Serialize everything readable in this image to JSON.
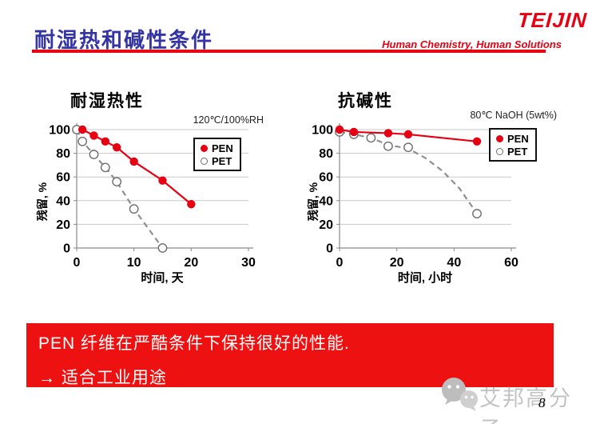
{
  "header": {
    "title": "耐湿热和碱性条件",
    "logo": "TEIJIN",
    "tagline": "Human Chemistry, Human Solutions",
    "brand_red": "#e60012",
    "title_blue": "#3534a5"
  },
  "chart_data": [
    {
      "type": "line",
      "title": "耐湿热性",
      "condition": "120℃/100%RH",
      "xlabel": "时间, 天",
      "ylabel": "残留, %",
      "xlim": [
        0,
        30
      ],
      "ylim": [
        0,
        100
      ],
      "xticks": [
        0,
        10,
        20,
        30
      ],
      "yticks": [
        0,
        20,
        40,
        60,
        80,
        100
      ],
      "grid": "horizontal",
      "legend_position": "upper-right-inside",
      "colors": {
        "grid": "#c9c9c9",
        "axis": "#8a8a8a"
      },
      "series": [
        {
          "name": "PEN",
          "color": "#e60012",
          "line_style": "solid",
          "marker": "filled-circle",
          "points": [
            [
              1,
              100
            ],
            [
              3,
              95
            ],
            [
              5,
              90
            ],
            [
              7,
              85
            ],
            [
              10,
              73
            ],
            [
              15,
              57
            ],
            [
              20,
              37
            ]
          ]
        },
        {
          "name": "PET",
          "color": "#8f8f8f",
          "line_style": "dashed",
          "marker": "open-circle",
          "points": [
            [
              0,
              100
            ],
            [
              1,
              90
            ],
            [
              3,
              79
            ],
            [
              5,
              68
            ],
            [
              7,
              56
            ],
            [
              10,
              33
            ],
            [
              15,
              0
            ]
          ]
        }
      ]
    },
    {
      "type": "line",
      "title": "抗碱性",
      "condition": "80℃ NaOH (5wt%)",
      "xlabel": "时间, 小时",
      "ylabel": "残留, %",
      "xlim": [
        0,
        60
      ],
      "ylim": [
        0,
        100
      ],
      "xticks": [
        0,
        20,
        40,
        60
      ],
      "yticks": [
        0,
        20,
        40,
        60,
        80,
        100
      ],
      "grid": "horizontal",
      "legend_position": "upper-right-inside",
      "colors": {
        "grid": "#c9c9c9",
        "axis": "#8a8a8a"
      },
      "series": [
        {
          "name": "PEN",
          "color": "#e60012",
          "line_style": "solid",
          "marker": "filled-circle",
          "points": [
            [
              0,
              100
            ],
            [
              5,
              98
            ],
            [
              17,
              97
            ],
            [
              24,
              96
            ],
            [
              48,
              90
            ]
          ]
        },
        {
          "name": "PET",
          "color": "#8f8f8f",
          "line_style": "dashed",
          "marker": "open-circle",
          "points": [
            [
              0,
              98
            ],
            [
              5,
              96
            ],
            [
              11,
              93
            ],
            [
              17,
              86
            ],
            [
              24,
              85
            ],
            [
              48,
              29
            ]
          ],
          "line_points": [
            [
              0,
              98
            ],
            [
              5,
              96
            ],
            [
              11,
              93
            ],
            [
              17,
              87
            ],
            [
              24,
              84
            ],
            [
              30,
              76
            ],
            [
              36,
              65
            ],
            [
              42,
              50
            ],
            [
              48,
              29
            ]
          ]
        }
      ]
    }
  ],
  "banner": {
    "line1": "PEN 纤维在严酷条件下保持很好的性能.",
    "line2": "→ 适合工业用途",
    "bg_color": "#ee1111",
    "text_color": "#ffffff"
  },
  "footer": {
    "watermark": "艾邦高分子",
    "wechat_icon": "wechat-icon",
    "page_number": "8"
  }
}
